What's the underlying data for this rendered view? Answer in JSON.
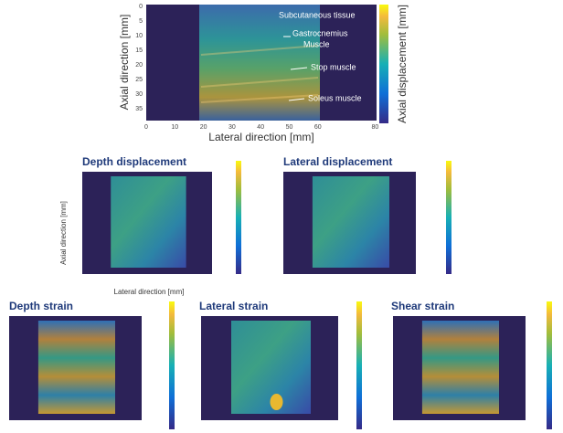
{
  "main_panel": {
    "y_label": "Axial direction [mm]",
    "x_label": "Lateral direction [mm]",
    "colorbar_label": "Axial displacement [mm]",
    "y_ticks": [
      "0",
      "5",
      "10",
      "15",
      "20",
      "25",
      "30",
      "35"
    ],
    "x_ticks": [
      "0",
      "10",
      "20",
      "30",
      "40",
      "50",
      "60",
      "80"
    ],
    "annotations": [
      "Subcutaneous tissue",
      "Gastrocnemius",
      "Muscle",
      "Stop muscle",
      "Soleus muscle"
    ]
  },
  "middle_y_label": "Axial direction [mm]",
  "middle_x_label": "Lateral direction [mm]",
  "panels": [
    {
      "title": "Depth displacement"
    },
    {
      "title": "Lateral displacement"
    },
    {
      "title": "Depth strain"
    },
    {
      "title": "Lateral strain"
    },
    {
      "title": "Shear strain"
    }
  ]
}
